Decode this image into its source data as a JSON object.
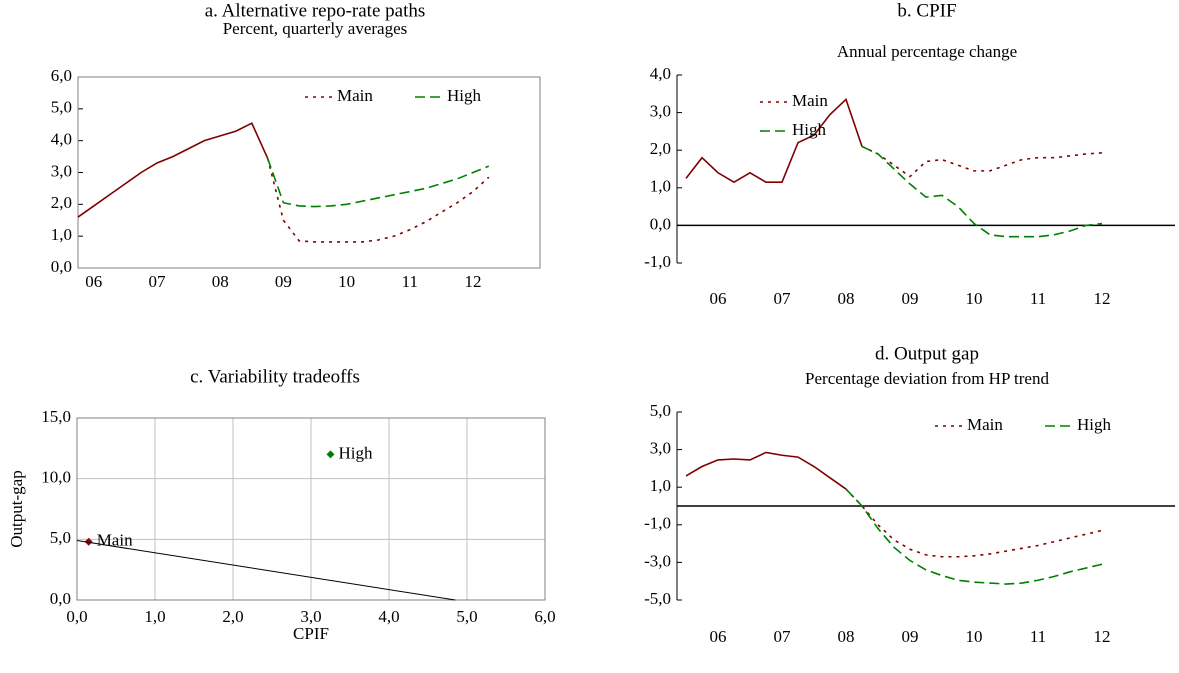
{
  "chart_data": [
    {
      "type": "line",
      "title": "a. Alternative repo-rate paths",
      "subtitle": "Percent, quarterly averages",
      "categories": [
        null,
        "06",
        null,
        null,
        null,
        "07",
        null,
        null,
        null,
        "08",
        null,
        null,
        null,
        "09",
        null,
        null,
        null,
        "10",
        null,
        null,
        null,
        "11",
        null,
        null,
        null,
        "12",
        null,
        null
      ],
      "ylim": [
        0,
        6
      ],
      "yticks": [
        {
          "value": 0,
          "label": "0,0"
        },
        {
          "value": 1,
          "label": "1,0"
        },
        {
          "value": 2,
          "label": "2,0"
        },
        {
          "value": 3,
          "label": "3,0"
        },
        {
          "value": 4,
          "label": "4,0"
        },
        {
          "value": 5,
          "label": "5,0"
        },
        {
          "value": 6,
          "label": "6,0"
        }
      ],
      "frame": true,
      "zero_line": false,
      "legend": "upper-right",
      "series": [
        {
          "color": "#800000",
          "dash": "solid",
          "values": [
            1.6,
            1.95,
            2.3,
            2.65,
            3.0,
            3.3,
            3.5,
            3.75,
            4.0,
            4.15,
            4.3,
            4.55,
            3.45,
            null,
            null,
            null,
            null,
            null,
            null,
            null,
            null,
            null,
            null,
            null,
            null,
            null,
            null,
            null
          ]
        },
        {
          "name": "Main",
          "color": "#800000",
          "dash": "dotted",
          "values": [
            null,
            null,
            null,
            null,
            null,
            null,
            null,
            null,
            null,
            null,
            null,
            null,
            3.45,
            1.5,
            0.85,
            0.82,
            0.82,
            0.82,
            0.82,
            0.88,
            1.0,
            1.2,
            1.45,
            1.75,
            2.05,
            2.4,
            2.85,
            null
          ]
        },
        {
          "name": "High",
          "color": "#008000",
          "dash": "dashed",
          "values": [
            null,
            null,
            null,
            null,
            null,
            null,
            null,
            null,
            null,
            null,
            null,
            null,
            3.45,
            2.05,
            1.95,
            1.93,
            1.95,
            2.0,
            2.1,
            2.2,
            2.3,
            2.4,
            2.5,
            2.65,
            2.8,
            3.0,
            3.2,
            null
          ]
        }
      ]
    },
    {
      "type": "line",
      "title": "b. CPIF",
      "subtitle": "Annual percentage change",
      "categories": [
        null,
        null,
        "06",
        null,
        null,
        null,
        "07",
        null,
        null,
        null,
        "08",
        null,
        null,
        null,
        "09",
        null,
        null,
        null,
        "10",
        null,
        null,
        null,
        "11",
        null,
        null,
        null,
        "12",
        null
      ],
      "ylim": [
        -1,
        4
      ],
      "yticks": [
        {
          "value": -1,
          "label": "-1,0"
        },
        {
          "value": 0,
          "label": "0,0"
        },
        {
          "value": 1,
          "label": "1,0"
        },
        {
          "value": 2,
          "label": "2,0"
        },
        {
          "value": 3,
          "label": "3,0"
        },
        {
          "value": 4,
          "label": "4,0"
        }
      ],
      "frame": false,
      "zero_line": true,
      "legend": "upper-left",
      "series": [
        {
          "color": "#800000",
          "dash": "solid",
          "values": [
            1.25,
            1.8,
            1.4,
            1.15,
            1.4,
            1.15,
            1.15,
            2.2,
            2.4,
            2.95,
            3.35,
            2.1,
            null,
            null,
            null,
            null,
            null,
            null,
            null,
            null,
            null,
            null,
            null,
            null,
            null,
            null,
            null,
            null
          ]
        },
        {
          "name": "Main",
          "color": "#800000",
          "dash": "dotted",
          "values": [
            null,
            null,
            null,
            null,
            null,
            null,
            null,
            null,
            null,
            null,
            null,
            2.1,
            1.9,
            1.6,
            1.3,
            1.7,
            1.75,
            1.6,
            1.45,
            1.45,
            1.6,
            1.75,
            1.8,
            1.8,
            1.85,
            1.9,
            1.93,
            null
          ]
        },
        {
          "name": "High",
          "color": "#008000",
          "dash": "dashed",
          "values": [
            null,
            null,
            null,
            null,
            null,
            null,
            null,
            null,
            null,
            null,
            null,
            2.1,
            1.9,
            1.5,
            1.1,
            0.75,
            0.8,
            0.5,
            0.05,
            -0.25,
            -0.3,
            -0.3,
            -0.3,
            -0.25,
            -0.15,
            0.0,
            0.05,
            null
          ]
        }
      ]
    },
    {
      "type": "scatter",
      "title": "c. Variability tradeoffs",
      "xlabel": "CPIF",
      "ylabel": "Output-gap",
      "xlim": [
        0,
        6
      ],
      "xticks": [
        {
          "value": 0,
          "label": "0,0"
        },
        {
          "value": 1,
          "label": "1,0"
        },
        {
          "value": 2,
          "label": "2,0"
        },
        {
          "value": 3,
          "label": "3,0"
        },
        {
          "value": 4,
          "label": "4,0"
        },
        {
          "value": 5,
          "label": "5,0"
        },
        {
          "value": 6,
          "label": "6,0"
        }
      ],
      "ylim": [
        0,
        15
      ],
      "yticks": [
        {
          "value": 0,
          "label": "0,0"
        },
        {
          "value": 5,
          "label": "5,0"
        },
        {
          "value": 10,
          "label": "10,0"
        },
        {
          "value": 15,
          "label": "15,0"
        }
      ],
      "grid": true,
      "series": [
        {
          "name": "Main",
          "color": "#a00000",
          "x": [
            0.15
          ],
          "y": [
            4.8
          ]
        },
        {
          "name": "High",
          "color": "#008000",
          "x": [
            3.25
          ],
          "y": [
            12.0
          ]
        },
        {
          "color": "#000000",
          "style": "line",
          "x": [
            0,
            4.85
          ],
          "y": [
            4.9,
            0
          ]
        }
      ]
    },
    {
      "type": "line",
      "title": "d. Output gap",
      "subtitle": "Percentage deviation from HP trend",
      "categories": [
        null,
        null,
        "06",
        null,
        null,
        null,
        "07",
        null,
        null,
        null,
        "08",
        null,
        null,
        null,
        "09",
        null,
        null,
        null,
        "10",
        null,
        null,
        null,
        "11",
        null,
        null,
        null,
        "12",
        null
      ],
      "ylim": [
        -5,
        5
      ],
      "yticks": [
        {
          "value": -5,
          "label": "-5,0"
        },
        {
          "value": -3,
          "label": "-3,0"
        },
        {
          "value": -1,
          "label": "-1,0"
        },
        {
          "value": 1,
          "label": "1,0"
        },
        {
          "value": 3,
          "label": "3,0"
        },
        {
          "value": 5,
          "label": "5,0"
        }
      ],
      "frame": false,
      "zero_line": true,
      "legend": "upper-right",
      "series": [
        {
          "color": "#800000",
          "dash": "solid",
          "values": [
            1.6,
            2.1,
            2.45,
            2.5,
            2.45,
            2.85,
            2.7,
            2.6,
            2.1,
            1.5,
            0.9,
            null,
            null,
            null,
            null,
            null,
            null,
            null,
            null,
            null,
            null,
            null,
            null,
            null,
            null,
            null,
            null,
            null
          ]
        },
        {
          "name": "Main",
          "color": "#800000",
          "dash": "dotted",
          "values": [
            null,
            null,
            null,
            null,
            null,
            null,
            null,
            null,
            null,
            null,
            0.9,
            0.0,
            -1.0,
            -1.8,
            -2.3,
            -2.6,
            -2.7,
            -2.7,
            -2.65,
            -2.55,
            -2.4,
            -2.25,
            -2.1,
            -1.9,
            -1.7,
            -1.5,
            -1.3,
            null
          ]
        },
        {
          "name": "High",
          "color": "#008000",
          "dash": "dashed",
          "values": [
            null,
            null,
            null,
            null,
            null,
            null,
            null,
            null,
            null,
            null,
            0.9,
            0.0,
            -1.2,
            -2.2,
            -2.9,
            -3.4,
            -3.7,
            -3.95,
            -4.05,
            -4.1,
            -4.15,
            -4.1,
            -3.95,
            -3.75,
            -3.5,
            -3.3,
            -3.1,
            null
          ]
        }
      ]
    }
  ]
}
